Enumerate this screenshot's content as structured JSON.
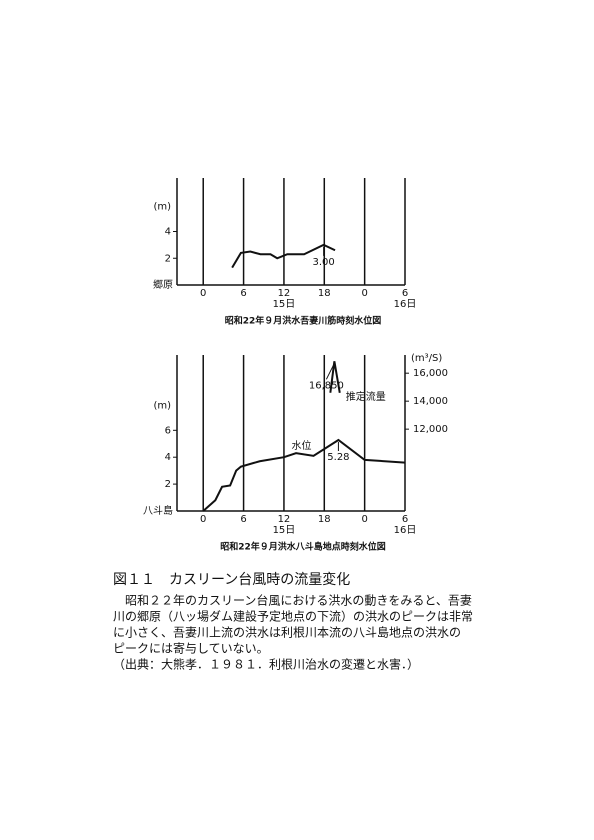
{
  "chart_data": [
    {
      "type": "line",
      "title": "昭和22年９月洪水吾妻川筋時刻水位図",
      "ylabel": "(m)",
      "station": "郷原",
      "xlim": [
        -3.9,
        30
      ],
      "ylim": [
        0,
        8
      ],
      "xticks": [
        0,
        6,
        12,
        18,
        {
          "value": 24,
          "label": "0"
        },
        {
          "value": 30,
          "label": "6"
        }
      ],
      "day_labels": [
        {
          "value": 12,
          "label": "15日"
        },
        {
          "value": 30,
          "label": "16日"
        }
      ],
      "yticks": [
        2,
        4
      ],
      "series": [
        {
          "color": "#111111",
          "x": [
            4.3,
            5.6,
            7,
            8.5,
            10,
            11,
            12.5,
            15,
            17.9,
            19.6
          ],
          "values": [
            1.3,
            2.4,
            2.5,
            2.3,
            2.3,
            2.0,
            2.3,
            2.3,
            3.0,
            2.6
          ],
          "value_labels": [
            null,
            null,
            null,
            null,
            null,
            null,
            null,
            null,
            "3.00",
            null
          ]
        }
      ]
    },
    {
      "type": "line",
      "title": "昭和22年９月洪水八斗島地点時刻水位図",
      "ylabel": "(m)",
      "y2label": "(m³/S)",
      "station": "八斗島",
      "xlim": [
        -3.9,
        30
      ],
      "ylim": [
        0,
        11.6
      ],
      "y2lim": [
        6150,
        17300
      ],
      "xticks": [
        0,
        6,
        12,
        18,
        {
          "value": 24,
          "label": "0"
        },
        {
          "value": 30,
          "label": "6"
        }
      ],
      "day_labels": [
        {
          "value": 12,
          "label": "15日"
        },
        {
          "value": 30,
          "label": "16日"
        }
      ],
      "yticks": [
        2,
        4,
        6
      ],
      "y2ticks": [
        {
          "value": 12000,
          "label": "12,000"
        },
        {
          "value": 14000,
          "label": "14,000"
        },
        {
          "value": 16000,
          "label": "16,000"
        }
      ],
      "series": [
        {
          "name": "水位",
          "color": "#111111",
          "x": [
            0,
            1.8,
            2.8,
            4,
            4.9,
            5.6,
            8.4,
            12,
            13.8,
            16.4,
            20.1,
            24,
            30
          ],
          "values": [
            0,
            0.8,
            1.8,
            1.9,
            3,
            3.3,
            3.7,
            4,
            4.3,
            4.1,
            5.28,
            3.8,
            3.6
          ],
          "value_labels": [
            null,
            null,
            null,
            null,
            null,
            null,
            null,
            null,
            null,
            null,
            "5.28",
            null,
            null
          ]
        },
        {
          "name": "推定流量",
          "color": "#111111",
          "axis": "y2",
          "x": [
            18.9,
            19.5,
            20.3
          ],
          "values": [
            14600,
            16850,
            14600
          ],
          "value_labels": [
            null,
            "16,850",
            null
          ]
        }
      ]
    }
  ],
  "figure": {
    "title": "図１１　カスリーン台風時の流量変化",
    "body": [
      "昭和２２年のカスリーン台風における洪水の動きをみると、吾妻",
      "川の郷原（八ッ場ダム建設予定地点の下流）の洪水のピークは非常",
      "に小さく、吾妻川上流の洪水は利根川本流の八斗島地点の洪水の",
      "ピークには寄与していない。",
      "（出典：大熊孝．１９８１．利根川治水の変遷と水害．）"
    ]
  }
}
